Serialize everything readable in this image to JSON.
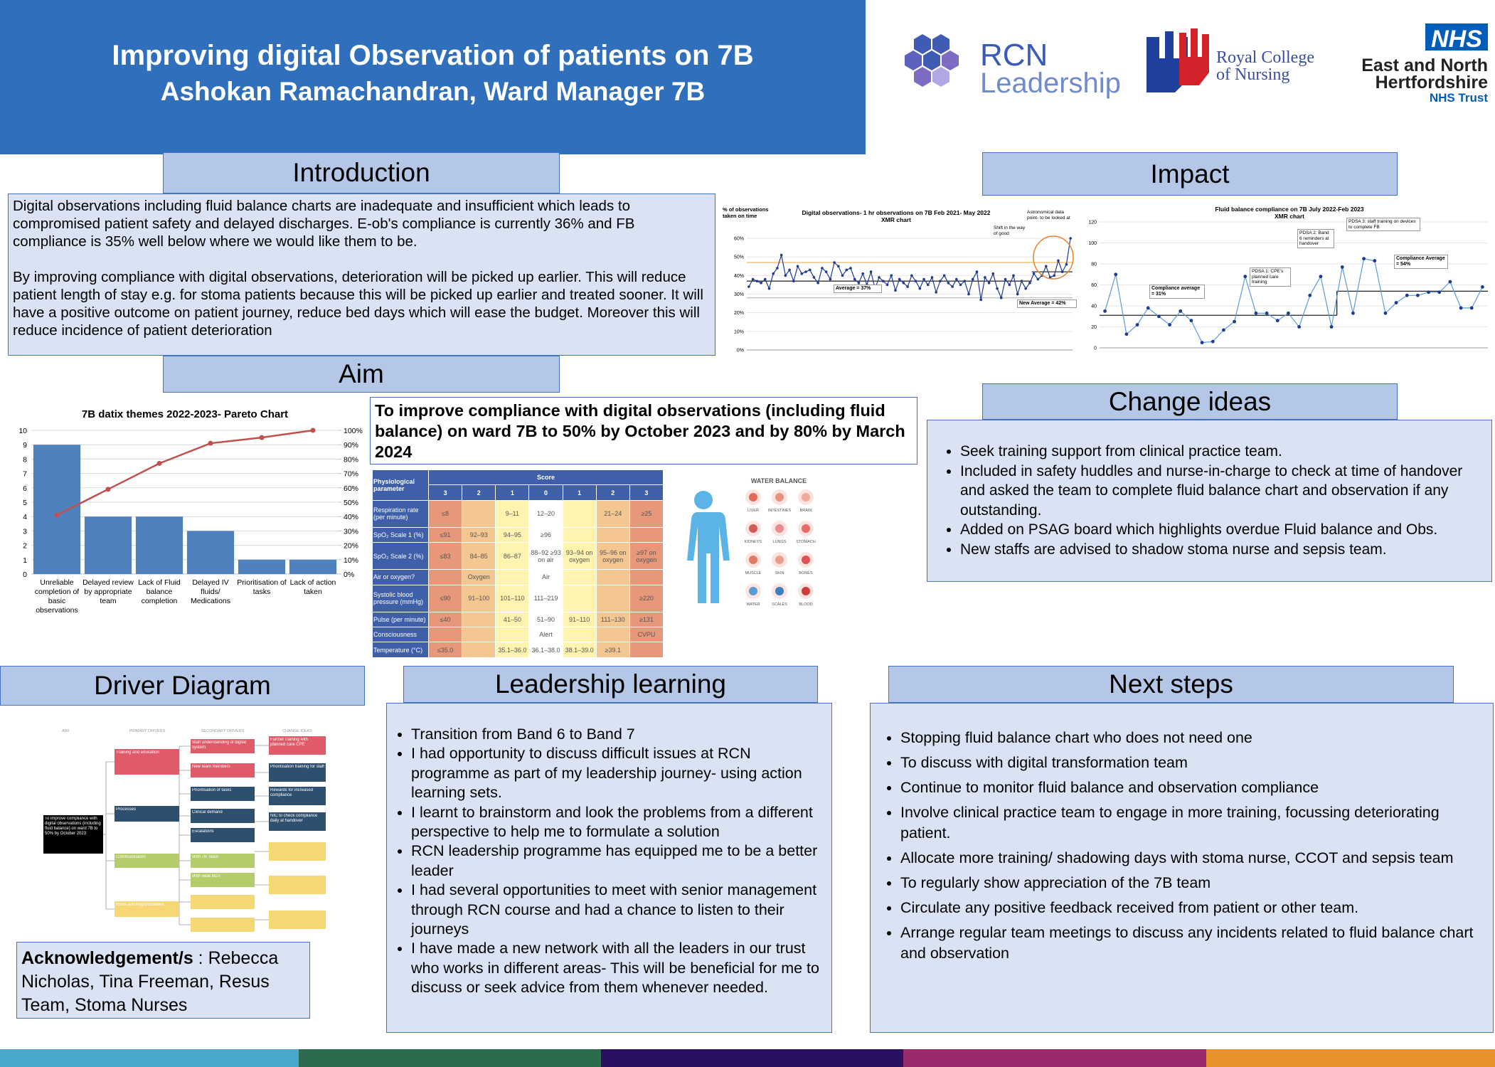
{
  "header": {
    "title": "Improving digital Observation of patients on 7B",
    "subtitle": "Ashokan Ramachandran, Ward Manager 7B"
  },
  "logos": {
    "rcn": [
      "RCN",
      "Leadership"
    ],
    "royal_college": [
      "Royal College",
      "of Nursing"
    ],
    "nhs": {
      "badge": "NHS",
      "lines": [
        "East and North",
        "Hertfordshire",
        "NHS Trust"
      ]
    }
  },
  "introduction": {
    "heading": "Introduction",
    "paragraphs": [
      "Digital observations including fluid balance charts are inadequate and insufficient which leads to compromised patient safety and delayed discharges. E-ob's compliance is currently 36% and FB compliance is 35% well below where we would like them to be.",
      "By improving compliance with digital observations, deterioration will be picked up earlier. This will reduce patient length of stay e.g. for stoma patients because this will be picked up earlier and treated sooner. It will have a positive outcome on patient journey, reduce bed days which will ease the budget. Moreover this will reduce incidence of patient deterioration"
    ]
  },
  "aim": {
    "heading": "Aim",
    "statement": "To improve compliance with digital observations (including fluid balance) on ward 7B to 50% by October 2023 and by 80% by March 2024"
  },
  "impact": {
    "heading": "Impact"
  },
  "change_ideas": {
    "heading": "Change ideas",
    "items": [
      "Seek training support from clinical practice team.",
      "Included in safety huddles and nurse-in-charge to check at time of handover and asked the team to complete fluid balance chart and observation if any outstanding.",
      "Added on PSAG board which highlights overdue Fluid balance and Obs.",
      "New staffs are advised to shadow stoma nurse and sepsis team."
    ]
  },
  "driver_diagram": {
    "heading": "Driver Diagram",
    "headers": [
      "AIM",
      "PRIMARY DRIVERS",
      "SECONDARY DRIVERS",
      "CHANGE IDEAS"
    ],
    "aim": "To improve compliance with digital observations (including fluid balance) on ward 7B to 50% by October 2023",
    "primary": [
      "Training and education",
      "Processes",
      "Communication",
      "Risks and responsibilities"
    ],
    "secondary": [
      "Staff understanding of digital system",
      "New team members",
      "Prioritisation of tasks",
      "Clinical demand",
      "Escalations",
      "With 7B Team",
      "With wide MDT"
    ],
    "change_ideas": [
      "Further training with planned care CPE",
      "Prioritisation training for staff",
      "Rewards for increased compliance",
      "NIC to check compliance daily at handover"
    ]
  },
  "acknowledgement": {
    "label": "Acknowledgement/s",
    "text": " : Rebecca Nicholas, Tina Freeman, Resus Team, Stoma Nurses"
  },
  "leadership_learning": {
    "heading": "Leadership learning",
    "items": [
      "Transition from Band 6 to Band 7",
      "I had opportunity to discuss difficult issues at RCN programme as part of my leadership journey- using action learning sets.",
      "I learnt to brainstorm and look the problems from a different perspective to help me to formulate a solution",
      "RCN leadership programme has equipped me to be a better leader",
      "I had several opportunities to meet with senior management through RCN course and had a chance to listen to their journeys",
      "I have made a new network with all the leaders in our trust who works in different areas- This will be beneficial for me to discuss or seek advice from them whenever needed."
    ]
  },
  "next_steps": {
    "heading": "Next steps",
    "items": [
      "Stopping fluid balance chart who does not need one",
      "To discuss with digital transformation team",
      "Continue to monitor fluid balance and observation compliance",
      "Involve clinical practice team to engage in more training, focussing deteriorating patient.",
      "Allocate more training/ shadowing days with stoma nurse, CCOT and sepsis team",
      "To regularly show appreciation of the 7B team",
      "Circulate any positive feedback received from patient or other team.",
      "Arrange regular team meetings to discuss any incidents related to fluid balance chart and observation"
    ]
  },
  "news_table": {
    "header": "Physiological parameter",
    "score_label": "Score",
    "scores": [
      "3",
      "2",
      "1",
      "0",
      "1",
      "2",
      "3"
    ],
    "rows": [
      {
        "parameter": "Respiration rate (per minute)",
        "cells": [
          "≤8",
          null,
          "9–11",
          "12–20",
          null,
          "21–24",
          "≥25"
        ]
      },
      {
        "parameter": "SpO₂ Scale 1 (%)",
        "cells": [
          "≤91",
          "92–93",
          "94–95",
          "≥96",
          null,
          null,
          null
        ]
      },
      {
        "parameter": "SpO₂ Scale 2 (%)",
        "cells": [
          "≤83",
          "84–85",
          "86–87",
          "88–92 ≥93 on air",
          "93–94 on oxygen",
          "95–96 on oxygen",
          "≥97 on oxygen"
        ]
      },
      {
        "parameter": "Air or oxygen?",
        "cells": [
          null,
          "Oxygen",
          null,
          "Air",
          null,
          null,
          null
        ]
      },
      {
        "parameter": "Systolic blood pressure (mmHg)",
        "cells": [
          "≤90",
          "91–100",
          "101–110",
          "111–219",
          null,
          null,
          "≥220"
        ]
      },
      {
        "parameter": "Pulse (per minute)",
        "cells": [
          "≤40",
          null,
          "41–50",
          "51–90",
          "91–110",
          "111–130",
          "≥131"
        ]
      },
      {
        "parameter": "Consciousness",
        "cells": [
          null,
          null,
          null,
          "Alert",
          null,
          null,
          "CVPU"
        ]
      },
      {
        "parameter": "Temperature (°C)",
        "cells": [
          "≤35.0",
          null,
          "35.1–36.0",
          "36.1–38.0",
          "38.1–39.0",
          "≥39.1",
          null
        ]
      }
    ]
  },
  "water_balance": {
    "title": "WATER BALANCE",
    "labels": [
      "LIVER",
      "INTESTINES",
      "BRAIN",
      "KIDNEYS",
      "LUNGS",
      "STOMACH",
      "MUSCLE",
      "SKIN",
      "BONES",
      "WATER",
      "SCALES",
      "BLOOD"
    ]
  },
  "chart_data": [
    {
      "type": "bar",
      "title": "7B datix themes 2022-2023- Pareto Chart",
      "categories": [
        "Unreliable completion of basic observations",
        "Delayed review by appropriate team",
        "Lack of Fluid balance completion",
        "Delayed IV fluids/ Medications",
        "Prioritisation of tasks",
        "Lack of action taken"
      ],
      "series": [
        {
          "values": [
            9,
            4,
            4,
            3,
            1,
            1
          ],
          "color": "#4f81bd"
        },
        {
          "values": [
            41,
            59,
            77,
            91,
            95,
            100
          ],
          "color": "#c0504d",
          "axis": "y2"
        }
      ],
      "ylim": [
        0,
        10
      ],
      "yticks": [
        0,
        1,
        2,
        3,
        4,
        5,
        6,
        7,
        8,
        9,
        10
      ],
      "y2lim": [
        0,
        100
      ],
      "y2ticks": [
        {
          "value": 0,
          "label": "0%"
        },
        {
          "value": 10,
          "label": "10%"
        },
        {
          "value": 20,
          "label": "20%"
        },
        {
          "value": 30,
          "label": "30%"
        },
        {
          "value": 40,
          "label": "40%"
        },
        {
          "value": 50,
          "label": "50%"
        },
        {
          "value": 60,
          "label": "60%"
        },
        {
          "value": 70,
          "label": "70%"
        },
        {
          "value": 80,
          "label": "80%"
        },
        {
          "value": 90,
          "label": "90%"
        },
        {
          "value": 100,
          "label": "100%"
        }
      ],
      "grid": true
    },
    {
      "type": "line",
      "title": "Digital observations- 1 hr observations on 7B  Feb 2021- May 2022",
      "subtitle": "XMR chart",
      "ylabel": "% of observations taken on time",
      "ylim": [
        0,
        60
      ],
      "yticks": [
        {
          "value": 0,
          "label": "0%"
        },
        {
          "value": 10,
          "label": "10%"
        },
        {
          "value": 20,
          "label": "20%"
        },
        {
          "value": 30,
          "label": "30%"
        },
        {
          "value": 40,
          "label": "40%"
        },
        {
          "value": 50,
          "label": "50%"
        },
        {
          "value": 60,
          "label": "60%"
        }
      ],
      "series": [
        {
          "color": "#1f3b8f",
          "values": [
            34,
            38,
            37,
            36,
            38,
            33,
            41,
            44,
            51,
            40,
            43,
            37,
            45,
            41,
            42,
            43,
            39,
            36,
            44,
            42,
            38,
            47,
            45,
            40,
            43,
            44,
            38,
            36,
            41,
            35,
            42,
            33,
            39,
            37,
            35,
            40,
            32,
            38,
            36,
            34,
            40,
            37,
            33,
            38,
            35,
            39,
            31,
            37,
            40,
            36,
            34,
            38,
            35,
            37,
            30,
            38,
            42,
            27,
            39,
            36,
            41,
            33,
            28,
            38,
            35,
            40,
            30,
            37,
            33,
            36,
            41,
            38,
            40,
            45,
            39,
            40,
            48,
            42,
            46,
            60
          ]
        }
      ],
      "center_lines": [
        {
          "value": 37,
          "label": "Average = 37%"
        },
        {
          "value": 42,
          "label": "New Average = 42%"
        }
      ],
      "control_limits": [
        47,
        28
      ],
      "annotations": [
        "Shift in the way of good",
        "Astronomical data point- to be looked at"
      ]
    },
    {
      "type": "line",
      "title": "Fluid balance compliance on 7B July 2022-Feb 2023",
      "subtitle": "XMR chart",
      "ylim": [
        0,
        120
      ],
      "yticks": [
        0,
        20,
        40,
        60,
        80,
        100,
        120
      ],
      "series": [
        {
          "color": "#5b9bd5",
          "values": [
            35,
            70,
            13,
            22,
            38,
            30,
            22,
            35,
            26,
            5,
            6,
            17,
            25,
            68,
            33,
            33,
            26,
            33,
            20,
            50,
            68,
            20,
            77,
            33,
            85,
            83,
            33,
            43,
            50,
            50,
            53,
            53,
            63,
            38,
            38,
            58
          ]
        }
      ],
      "center_lines": [
        {
          "value": 31,
          "label": "Compliance average = 31%"
        },
        {
          "value": 54,
          "label": "Compliance Average = 54%"
        }
      ],
      "annotations": [
        "PDSA 1: CPE's planned care training",
        "PDSA 2: Band 6 reminders at handover",
        "PDSA 3: staff training on devices to complete FB"
      ]
    }
  ]
}
